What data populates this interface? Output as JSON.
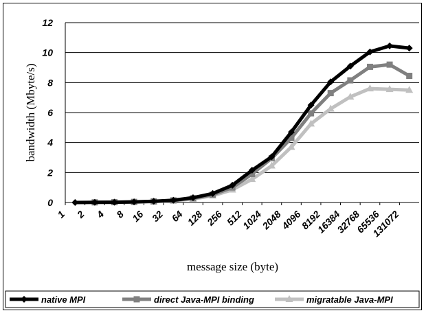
{
  "chart_data": {
    "type": "line",
    "title": "",
    "xlabel": "message size (byte)",
    "ylabel": "bandwidth (Mbyte/s)",
    "ylim": [
      0,
      12
    ],
    "yticks": [
      "0",
      "2",
      "4",
      "6",
      "8",
      "10",
      "12"
    ],
    "grid": "horizontal",
    "legend_position": "bottom",
    "categories": [
      "1",
      "2",
      "4",
      "8",
      "16",
      "32",
      "64",
      "128",
      "256",
      "512",
      "1024",
      "2048",
      "4096",
      "8192",
      "16384",
      "32768",
      "65536",
      "131072"
    ],
    "series": [
      {
        "name": "native MPI",
        "color": "#000000",
        "marker": "diamond",
        "values": [
          0.0,
          0.01,
          0.02,
          0.04,
          0.08,
          0.15,
          0.32,
          0.6,
          1.15,
          2.15,
          3.05,
          4.7,
          6.5,
          8.05,
          9.1,
          10.05,
          10.45,
          10.3
        ]
      },
      {
        "name": "direct Java-MPI binding",
        "color": "#808080",
        "marker": "square",
        "values": [
          null,
          0.01,
          0.02,
          0.04,
          0.07,
          0.14,
          0.28,
          0.52,
          1.0,
          1.9,
          2.95,
          4.3,
          5.95,
          7.3,
          8.15,
          9.05,
          9.2,
          8.45
        ]
      },
      {
        "name": "migratable Java-MPI",
        "color": "#c0c0c0",
        "marker": "triangle",
        "values": [
          null,
          null,
          0.01,
          0.03,
          0.06,
          0.12,
          0.24,
          0.45,
          0.85,
          1.55,
          2.45,
          3.7,
          5.25,
          6.25,
          7.05,
          7.6,
          7.55,
          7.5
        ]
      }
    ]
  }
}
